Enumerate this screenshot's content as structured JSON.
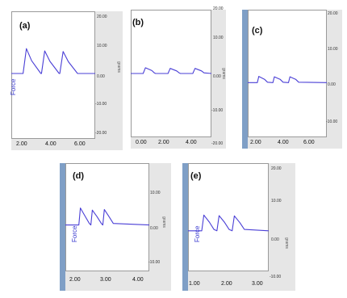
{
  "chart_data": [
    {
      "type": "line",
      "panel_label": "(a)",
      "ylabel": "Force",
      "y2label": "grams",
      "x_ticks": [
        "2.00",
        "4.00",
        "6.00"
      ],
      "y_ticks": [
        "20.00",
        "10.00",
        "0.00",
        "-10.00",
        "-20.00"
      ],
      "ylim": [
        -20,
        20
      ],
      "xlim": [
        1.2,
        7.6
      ],
      "series": [
        {
          "x": [
            1.2,
            2.1,
            2.35,
            2.75,
            3.45,
            3.5,
            3.75,
            4.15,
            4.85,
            4.9,
            5.15,
            5.55,
            6.25,
            6.3,
            7.6
          ],
          "y": [
            0.5,
            0.5,
            8.3,
            4.5,
            0.5,
            0.5,
            7.6,
            4.3,
            0.5,
            0.5,
            7.4,
            4.2,
            0.5,
            0.5,
            0.5
          ]
        }
      ],
      "color": "#4a3fd6"
    },
    {
      "type": "line",
      "panel_label": "(b)",
      "ylabel": "",
      "y2label": "grams",
      "x_ticks": [
        "0.00",
        "2.00",
        "4.00"
      ],
      "y_ticks": [
        "20.00",
        "10.00",
        "0.00",
        "-10.00",
        "-20.00"
      ],
      "ylim": [
        -20,
        20
      ],
      "xlim": [
        -0.7,
        5.8
      ],
      "series": [
        {
          "x": [
            -0.7,
            0.3,
            0.48,
            1.0,
            1.2,
            1.3,
            2.3,
            2.48,
            3.0,
            3.2,
            3.3,
            4.3,
            4.48,
            5.0,
            5.2,
            5.8
          ],
          "y": [
            0.0,
            0.0,
            1.8,
            0.9,
            0.2,
            0.0,
            0.0,
            1.6,
            0.8,
            0.2,
            0.0,
            0.0,
            1.6,
            0.8,
            0.2,
            0.0
          ]
        }
      ],
      "color": "#4a3fd6"
    },
    {
      "type": "line",
      "panel_label": "(c)",
      "ylabel": "",
      "y2label": "",
      "x_ticks": [
        "2.00",
        "4.00",
        "6.00"
      ],
      "y_ticks": [
        "20.00",
        "10.00",
        "0.00",
        "-10.00"
      ],
      "ylim": [
        -15,
        20
      ],
      "xlim": [
        1.2,
        7.8
      ],
      "series": [
        {
          "x": [
            1.2,
            2.0,
            2.12,
            2.6,
            2.85,
            3.3,
            3.42,
            3.9,
            4.15,
            4.6,
            4.72,
            5.2,
            5.45,
            7.8
          ],
          "y": [
            0.0,
            0.0,
            1.7,
            0.9,
            0.1,
            0.0,
            1.6,
            0.9,
            0.1,
            0.0,
            1.6,
            0.9,
            0.1,
            0.0
          ]
        }
      ],
      "color": "#4a3fd6"
    },
    {
      "type": "line",
      "panel_label": "(d)",
      "ylabel": "Force",
      "y2label": "grams",
      "x_ticks": [
        "2.00",
        "3.00",
        "4.00"
      ],
      "y_ticks": [
        "10.00",
        "0.00",
        "-10.00"
      ],
      "ylim": [
        -15,
        20
      ],
      "xlim": [
        1.6,
        4.4
      ],
      "series": [
        {
          "x": [
            1.6,
            2.05,
            2.1,
            2.25,
            2.4,
            2.45,
            2.5,
            2.65,
            2.8,
            2.85,
            2.9,
            3.05,
            3.2,
            4.4
          ],
          "y": [
            0.0,
            0.0,
            5.5,
            3.0,
            0.5,
            0.0,
            4.8,
            2.8,
            0.5,
            0.0,
            5.0,
            2.8,
            0.5,
            0.0
          ]
        }
      ],
      "color": "#4a3fd6"
    },
    {
      "type": "line",
      "panel_label": "(e)",
      "ylabel": "Force",
      "y2label": "grams",
      "x_ticks": [
        "1.00",
        "2.00",
        "3.00"
      ],
      "y_ticks": [
        "20.00",
        "10.00",
        "0.00",
        "-10.00"
      ],
      "ylim": [
        -15,
        25
      ],
      "xlim": [
        0.7,
        3.35
      ],
      "series": [
        {
          "x": [
            0.7,
            1.15,
            1.22,
            1.4,
            1.55,
            1.65,
            1.72,
            1.9,
            2.05,
            2.15,
            2.22,
            2.4,
            2.55,
            3.35
          ],
          "y": [
            0.0,
            0.0,
            5.8,
            3.2,
            0.5,
            0.0,
            5.6,
            3.1,
            0.5,
            0.0,
            5.5,
            3.0,
            0.5,
            0.0
          ]
        }
      ],
      "color": "#4a3fd6"
    }
  ]
}
